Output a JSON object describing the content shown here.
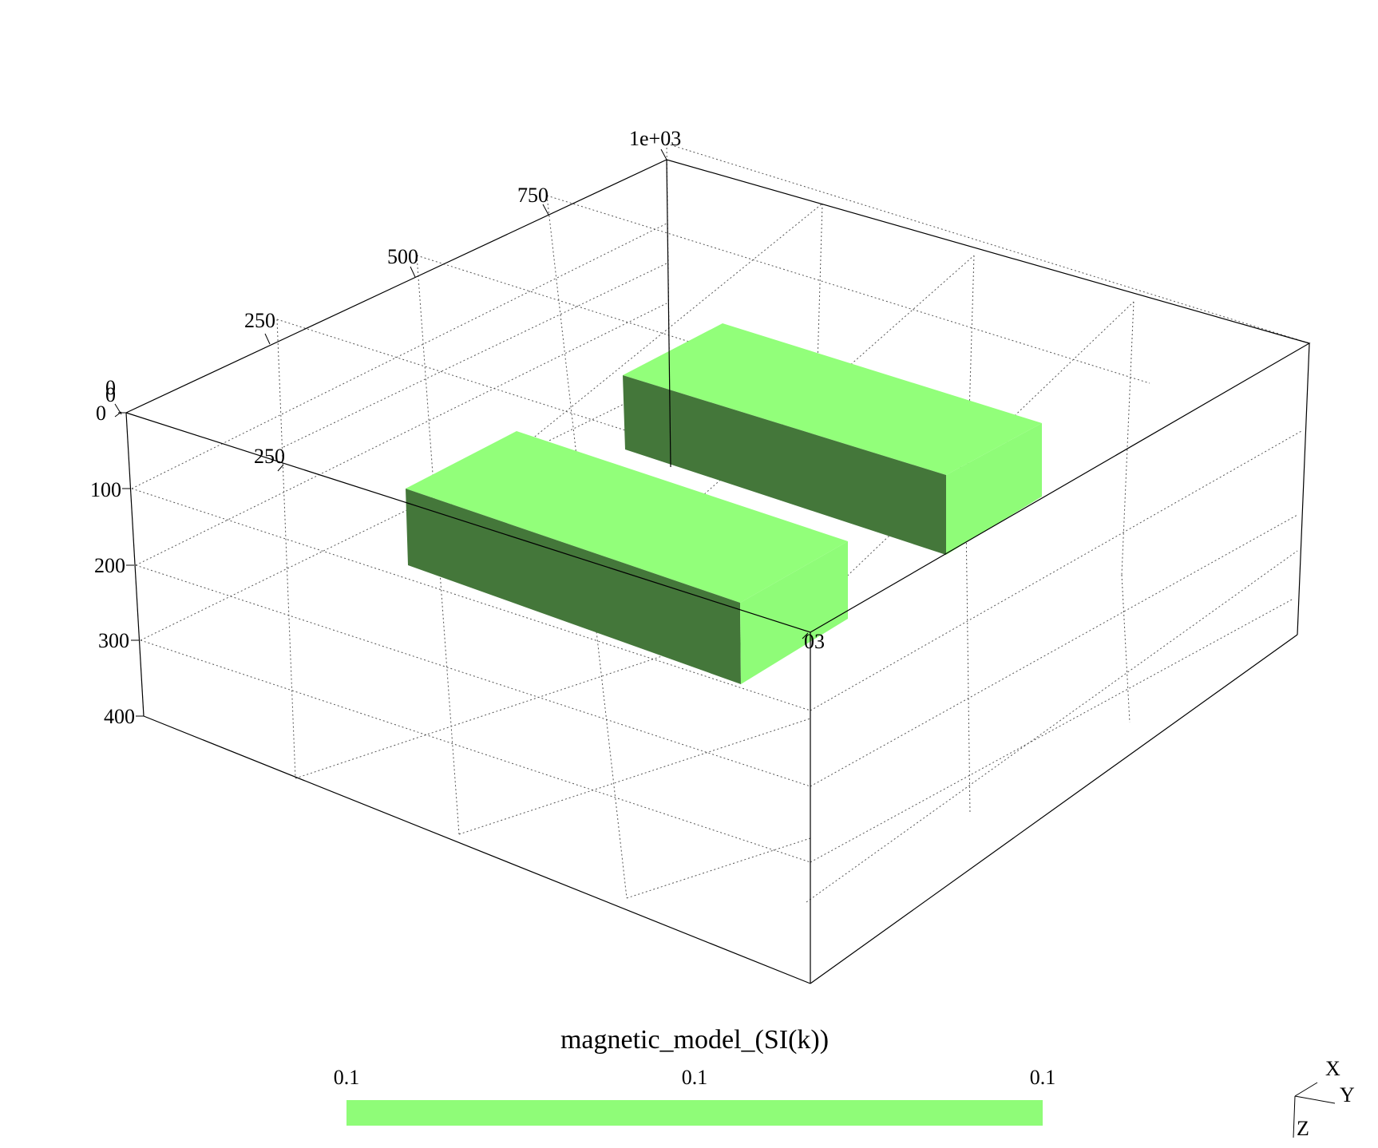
{
  "colors": {
    "block_top": "#92ff7a",
    "block_side_light": "#8ffc78",
    "block_side_dark": "#44773a",
    "colorbar": "#8ffc78"
  },
  "axes": {
    "upper_axis_ticks": [
      "0",
      "250",
      "500",
      "750",
      "1e+03"
    ],
    "lower_axis_ticks": [
      "0",
      "250",
      "03"
    ],
    "depth_ticks": [
      "0",
      "100",
      "200",
      "300",
      "400"
    ]
  },
  "colorbar": {
    "title": "magnetic_model_(SI(k))",
    "labels": [
      "0.1",
      "0.1",
      "0.1"
    ]
  },
  "orientation": {
    "x": "X",
    "y": "Y",
    "z": "Z"
  }
}
